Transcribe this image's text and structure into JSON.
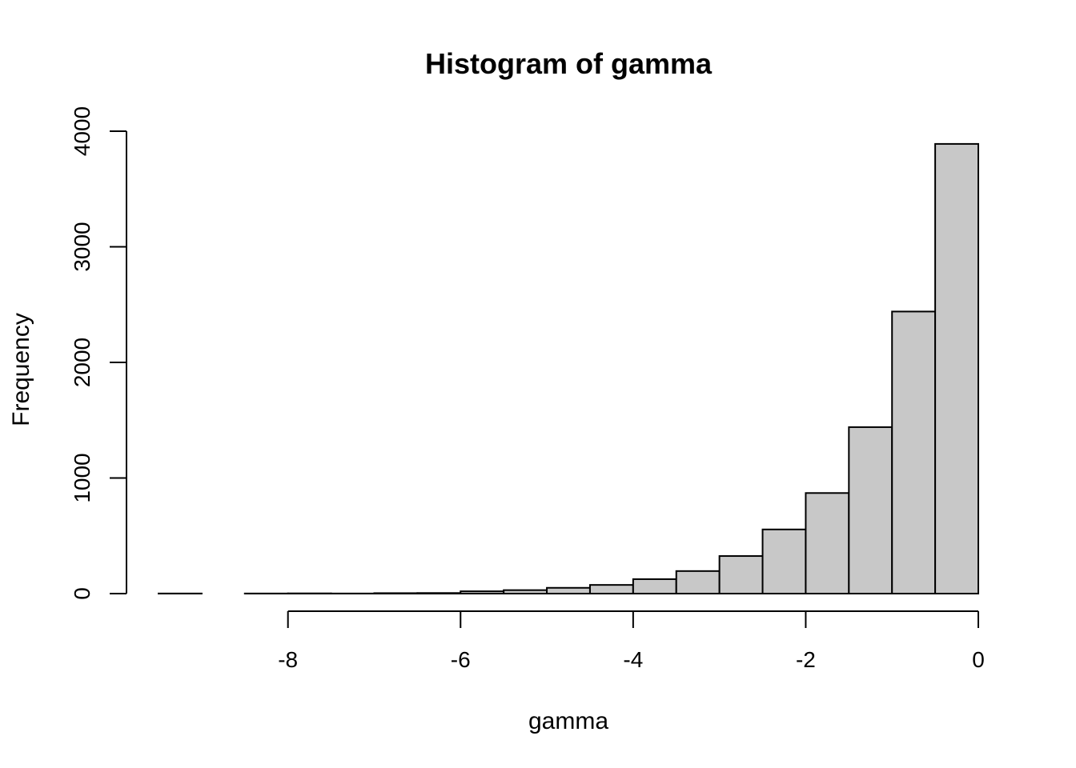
{
  "chart_data": {
    "type": "bar",
    "title": "Histogram of gamma",
    "xlabel": "gamma",
    "ylabel": "Frequency",
    "bin_width": 0.5,
    "bins": [
      {
        "start": -9.5,
        "end": -9.0,
        "count": 1
      },
      {
        "start": -9.0,
        "end": -8.5,
        "count": 0
      },
      {
        "start": -8.5,
        "end": -8.0,
        "count": 1
      },
      {
        "start": -8.0,
        "end": -7.5,
        "count": 2
      },
      {
        "start": -7.5,
        "end": -7.0,
        "count": 1
      },
      {
        "start": -7.0,
        "end": -6.5,
        "count": 4
      },
      {
        "start": -6.5,
        "end": -6.0,
        "count": 5
      },
      {
        "start": -6.0,
        "end": -5.5,
        "count": 20
      },
      {
        "start": -5.5,
        "end": -5.0,
        "count": 30
      },
      {
        "start": -5.0,
        "end": -4.5,
        "count": 50
      },
      {
        "start": -4.5,
        "end": -4.0,
        "count": 75
      },
      {
        "start": -4.0,
        "end": -3.5,
        "count": 125
      },
      {
        "start": -3.5,
        "end": -3.0,
        "count": 195
      },
      {
        "start": -3.0,
        "end": -2.5,
        "count": 325
      },
      {
        "start": -2.5,
        "end": -2.0,
        "count": 555
      },
      {
        "start": -2.0,
        "end": -1.5,
        "count": 870
      },
      {
        "start": -1.5,
        "end": -1.0,
        "count": 1440
      },
      {
        "start": -1.0,
        "end": -0.5,
        "count": 2440
      },
      {
        "start": -0.5,
        "end": 0.0,
        "count": 3890
      }
    ],
    "xlim": [
      -9.5,
      0
    ],
    "ylim": [
      0,
      4000
    ],
    "x_ticks": [
      {
        "value": -8,
        "label": "-8"
      },
      {
        "value": -6,
        "label": "-6"
      },
      {
        "value": -4,
        "label": "-4"
      },
      {
        "value": -2,
        "label": "-2"
      },
      {
        "value": 0,
        "label": "0"
      }
    ],
    "y_ticks": [
      {
        "value": 0,
        "label": "0"
      },
      {
        "value": 1000,
        "label": "1000"
      },
      {
        "value": 2000,
        "label": "2000"
      },
      {
        "value": 3000,
        "label": "3000"
      },
      {
        "value": 4000,
        "label": "4000"
      }
    ],
    "grid": false,
    "bar_color": "#c8c8c8",
    "edge_color": "#000000"
  }
}
